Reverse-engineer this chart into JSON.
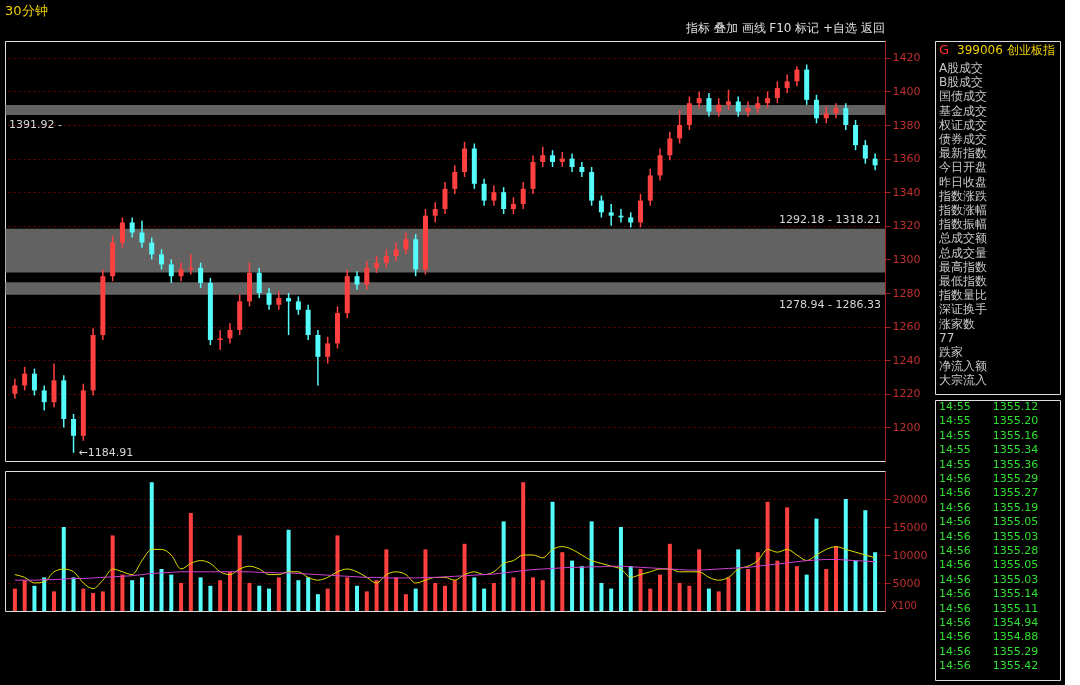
{
  "chart_data": [
    {
      "type": "candlestick",
      "title": "30分钟",
      "subtitle": "指标 叠加 画线 F10 标记 +自选 返回",
      "categories": [
        null,
        null,
        null,
        null,
        null,
        null,
        null,
        null,
        null,
        null,
        null,
        null,
        null,
        null,
        null,
        null,
        null,
        null,
        null,
        null,
        null,
        null,
        null,
        null,
        null,
        null,
        null,
        null,
        null,
        null,
        null,
        null,
        null,
        null,
        null,
        null,
        null,
        null,
        null,
        null,
        null,
        null,
        null,
        null,
        null,
        null,
        null,
        null,
        null,
        null,
        null,
        null,
        null,
        null,
        null,
        null,
        null,
        null,
        null,
        null,
        null,
        null,
        null,
        null,
        null,
        null,
        null,
        null,
        null,
        null,
        null,
        null,
        null,
        null,
        null,
        null,
        null,
        null,
        null,
        null,
        null,
        null,
        null,
        null,
        null,
        null,
        null,
        null,
        null
      ],
      "ohlc": [
        [
          1220,
          1229,
          1217,
          1225
        ],
        [
          1225,
          1236,
          1222,
          1232
        ],
        [
          1232,
          1235,
          1219,
          1222
        ],
        [
          1222,
          1225,
          1210,
          1215
        ],
        [
          1215,
          1238,
          1212,
          1228
        ],
        [
          1228,
          1231,
          1200,
          1205
        ],
        [
          1205,
          1208,
          1184.91,
          1195
        ],
        [
          1195,
          1226,
          1192,
          1222
        ],
        [
          1222,
          1259,
          1219,
          1255
        ],
        [
          1255,
          1294,
          1252,
          1290
        ],
        [
          1290,
          1314,
          1287,
          1310
        ],
        [
          1310,
          1325,
          1307,
          1322
        ],
        [
          1322,
          1325,
          1313,
          1316
        ],
        [
          1316,
          1323,
          1307,
          1310
        ],
        [
          1310,
          1313,
          1300,
          1303
        ],
        [
          1303,
          1306,
          1294,
          1297
        ],
        [
          1297,
          1300,
          1286,
          1290
        ],
        [
          1290,
          1298,
          1287,
          1294
        ],
        [
          1294,
          1303,
          1291,
          1295
        ],
        [
          1295,
          1298,
          1283,
          1286
        ],
        [
          1286,
          1289,
          1249,
          1252
        ],
        [
          1252,
          1258,
          1246,
          1253
        ],
        [
          1253,
          1262,
          1250,
          1258
        ],
        [
          1258,
          1279,
          1255,
          1275
        ],
        [
          1275,
          1298,
          1272,
          1292
        ],
        [
          1292,
          1295,
          1277,
          1280
        ],
        [
          1280,
          1283,
          1270,
          1273
        ],
        [
          1273,
          1281,
          1270,
          1277
        ],
        [
          1277,
          1280,
          1255,
          1275
        ],
        [
          1275,
          1278,
          1267,
          1270
        ],
        [
          1270,
          1273,
          1252,
          1255
        ],
        [
          1255,
          1258,
          1225,
          1242
        ],
        [
          1242,
          1254,
          1238,
          1250
        ],
        [
          1250,
          1272,
          1247,
          1268
        ],
        [
          1268,
          1294,
          1265,
          1290
        ],
        [
          1290,
          1293,
          1282,
          1285
        ],
        [
          1285,
          1299,
          1282,
          1295
        ],
        [
          1295,
          1302,
          1292,
          1298
        ],
        [
          1298,
          1306,
          1295,
          1302
        ],
        [
          1302,
          1310,
          1299,
          1306
        ],
        [
          1306,
          1316,
          1303,
          1312
        ],
        [
          1312,
          1315,
          1290,
          1294
        ],
        [
          1294,
          1330,
          1291,
          1326
        ],
        [
          1326,
          1334,
          1322,
          1330
        ],
        [
          1330,
          1346,
          1327,
          1342
        ],
        [
          1342,
          1356,
          1339,
          1352
        ],
        [
          1352,
          1370,
          1349,
          1366
        ],
        [
          1366,
          1369,
          1342,
          1345
        ],
        [
          1345,
          1348,
          1332,
          1335
        ],
        [
          1335,
          1344,
          1332,
          1340
        ],
        [
          1340,
          1343,
          1327,
          1330
        ],
        [
          1330,
          1337,
          1327,
          1333
        ],
        [
          1333,
          1346,
          1330,
          1342
        ],
        [
          1342,
          1362,
          1339,
          1358
        ],
        [
          1358,
          1367,
          1355,
          1362
        ],
        [
          1362,
          1365,
          1355,
          1358
        ],
        [
          1358,
          1364,
          1355,
          1360
        ],
        [
          1360,
          1363,
          1352,
          1355
        ],
        [
          1355,
          1358,
          1349,
          1352
        ],
        [
          1352,
          1355,
          1332,
          1335
        ],
        [
          1335,
          1338,
          1325,
          1328
        ],
        [
          1328,
          1333,
          1320,
          1326
        ],
        [
          1326,
          1330,
          1322,
          1325
        ],
        [
          1325,
          1328,
          1319,
          1322
        ],
        [
          1322,
          1339,
          1319,
          1335
        ],
        [
          1335,
          1354,
          1332,
          1350
        ],
        [
          1350,
          1366,
          1347,
          1362
        ],
        [
          1362,
          1376,
          1359,
          1372
        ],
        [
          1372,
          1389,
          1369,
          1380
        ],
        [
          1380,
          1397,
          1377,
          1393
        ],
        [
          1393,
          1400,
          1390,
          1396
        ],
        [
          1396,
          1399,
          1385,
          1388
        ],
        [
          1388,
          1396,
          1385,
          1392
        ],
        [
          1392,
          1401,
          1389,
          1394
        ],
        [
          1394,
          1397,
          1385,
          1388
        ],
        [
          1388,
          1394,
          1385,
          1390
        ],
        [
          1390,
          1397,
          1387,
          1393
        ],
        [
          1393,
          1400,
          1390,
          1396
        ],
        [
          1396,
          1406,
          1393,
          1402
        ],
        [
          1402,
          1410,
          1399,
          1406
        ],
        [
          1406,
          1415,
          1403,
          1413
        ],
        [
          1413,
          1416,
          1392,
          1395
        ],
        [
          1395,
          1398,
          1381,
          1384
        ],
        [
          1384,
          1391,
          1381,
          1387
        ],
        [
          1387,
          1393,
          1384,
          1390
        ],
        [
          1390,
          1393,
          1377,
          1380
        ],
        [
          1380,
          1383,
          1365,
          1368
        ],
        [
          1368,
          1371,
          1357,
          1360
        ],
        [
          1360,
          1363,
          1353,
          1356
        ]
      ],
      "colors": [
        "#ff4040",
        "#ff4040",
        "#54fcfc",
        "#54fcfc",
        "#ff4040",
        "#54fcfc",
        "#54fcfc",
        "#ff4040",
        "#ff4040",
        "#ff4040",
        "#ff4040",
        "#ff4040",
        "#54fcfc",
        "#54fcfc",
        "#54fcfc",
        "#54fcfc",
        "#54fcfc",
        "#ff4040",
        "#ff4040",
        "#54fcfc",
        "#54fcfc",
        "#ff4040",
        "#ff4040",
        "#ff4040",
        "#ff4040",
        "#54fcfc",
        "#54fcfc",
        "#ff4040",
        "#54fcfc",
        "#54fcfc",
        "#54fcfc",
        "#54fcfc",
        "#ff4040",
        "#ff4040",
        "#ff4040",
        "#54fcfc",
        "#ff4040",
        "#ff4040",
        "#ff4040",
        "#ff4040",
        "#ff4040",
        "#54fcfc",
        "#ff4040",
        "#ff4040",
        "#ff4040",
        "#ff4040",
        "#ff4040",
        "#54fcfc",
        "#54fcfc",
        "#ff4040",
        "#54fcfc",
        "#ff4040",
        "#ff4040",
        "#ff4040",
        "#ff4040",
        "#54fcfc",
        "#ff4040",
        "#54fcfc",
        "#54fcfc",
        "#54fcfc",
        "#54fcfc",
        "#54fcfc",
        "#54fcfc",
        "#54fcfc",
        "#ff4040",
        "#ff4040",
        "#ff4040",
        "#ff4040",
        "#ff4040",
        "#ff4040",
        "#ff4040",
        "#54fcfc",
        "#ff4040",
        "#ff4040",
        "#54fcfc",
        "#ff4040",
        "#ff4040",
        "#ff4040",
        "#ff4040",
        "#ff4040",
        "#ff4040",
        "#54fcfc",
        "#54fcfc",
        "#ff4040",
        "#ff4040",
        "#54fcfc",
        "#54fcfc",
        "#54fcfc",
        "#54fcfc"
      ],
      "ylim": [
        1180,
        1430
      ],
      "yticks": [
        1200,
        1220,
        1240,
        1260,
        1280,
        1300,
        1320,
        1340,
        1360,
        1380,
        1400,
        1420
      ],
      "grid": "y",
      "bands": [
        {
          "axis": "y",
          "from": 1292.18,
          "to": 1318.21,
          "label": "1292.18 - 1318.21",
          "color": "#8c8c8c"
        },
        {
          "axis": "y",
          "from": 1278.94,
          "to": 1286.33,
          "label": "1278.94 - 1286.33",
          "color": "#8c8c8c"
        },
        {
          "axis": "y",
          "from": 1386,
          "to": 1391.92,
          "label": "1391.92 -",
          "color": "#8c8c8c"
        }
      ],
      "annotations": [
        "←1184.91"
      ]
    },
    {
      "type": "bar",
      "categories": [
        null,
        null,
        null,
        null,
        null,
        null,
        null,
        null,
        null,
        null,
        null,
        null,
        null,
        null,
        null,
        null,
        null,
        null,
        null,
        null,
        null,
        null,
        null,
        null,
        null,
        null,
        null,
        null,
        null,
        null,
        null,
        null,
        null,
        null,
        null,
        null,
        null,
        null,
        null,
        null,
        null,
        null,
        null,
        null,
        null,
        null,
        null,
        null,
        null,
        null,
        null,
        null,
        null,
        null,
        null,
        null,
        null,
        null,
        null,
        null,
        null,
        null,
        null,
        null,
        null,
        null,
        null,
        null,
        null,
        null,
        null,
        null,
        null,
        null,
        null,
        null,
        null,
        null,
        null,
        null,
        null,
        null,
        null,
        null,
        null,
        null,
        null,
        null,
        null
      ],
      "series": [
        {
          "type": "bar",
          "colors": [
            "#ff4040",
            "#ff4040",
            "#54fcfc",
            "#54fcfc",
            "#ff4040",
            "#54fcfc",
            "#54fcfc",
            "#ff4040",
            "#ff4040",
            "#ff4040",
            "#ff4040",
            "#ff4040",
            "#54fcfc",
            "#54fcfc",
            "#54fcfc",
            "#54fcfc",
            "#54fcfc",
            "#ff4040",
            "#ff4040",
            "#54fcfc",
            "#54fcfc",
            "#ff4040",
            "#ff4040",
            "#ff4040",
            "#ff4040",
            "#54fcfc",
            "#54fcfc",
            "#ff4040",
            "#54fcfc",
            "#54fcfc",
            "#54fcfc",
            "#54fcfc",
            "#ff4040",
            "#ff4040",
            "#ff4040",
            "#54fcfc",
            "#ff4040",
            "#ff4040",
            "#ff4040",
            "#ff4040",
            "#ff4040",
            "#54fcfc",
            "#ff4040",
            "#ff4040",
            "#ff4040",
            "#ff4040",
            "#ff4040",
            "#54fcfc",
            "#54fcfc",
            "#ff4040",
            "#54fcfc",
            "#ff4040",
            "#ff4040",
            "#ff4040",
            "#ff4040",
            "#54fcfc",
            "#ff4040",
            "#54fcfc",
            "#54fcfc",
            "#54fcfc",
            "#54fcfc",
            "#54fcfc",
            "#54fcfc",
            "#54fcfc",
            "#ff4040",
            "#ff4040",
            "#ff4040",
            "#ff4040",
            "#ff4040",
            "#ff4040",
            "#ff4040",
            "#54fcfc",
            "#ff4040",
            "#ff4040",
            "#54fcfc",
            "#ff4040",
            "#ff4040",
            "#ff4040",
            "#ff4040",
            "#ff4040",
            "#ff4040",
            "#54fcfc",
            "#54fcfc",
            "#ff4040",
            "#ff4040",
            "#54fcfc",
            "#54fcfc",
            "#54fcfc",
            "#54fcfc"
          ],
          "values": [
            4000,
            5500,
            4500,
            6000,
            3500,
            15000,
            6000,
            4000,
            3200,
            3500,
            13500,
            6500,
            5500,
            6000,
            23000,
            7500,
            6500,
            5000,
            17500,
            6000,
            4500,
            5500,
            7000,
            13500,
            5000,
            4500,
            4000,
            6000,
            14500,
            5500,
            6000,
            3000,
            4000,
            13500,
            6000,
            4500,
            3500,
            5500,
            11000,
            6000,
            3000,
            4000,
            11000,
            5000,
            4500,
            5500,
            12000,
            6000,
            4000,
            5000,
            16000,
            6000,
            23000,
            6000,
            5500,
            19500,
            10500,
            9000,
            8000,
            16000,
            5000,
            4000,
            15000,
            8000,
            7500,
            4000,
            6500,
            12000,
            5000,
            4500,
            11000,
            4000,
            3500,
            6000,
            11000,
            7500,
            10500,
            19500,
            9000,
            18500,
            8000,
            6500,
            16500,
            7500,
            11500,
            20000,
            9000,
            18000,
            10500
          ]
        },
        {
          "type": "line",
          "color": "#e0e000",
          "values": [
            6500,
            6000,
            5000,
            5200,
            7000,
            7500,
            7000,
            5000,
            4000,
            5500,
            7500,
            7000,
            6500,
            9000,
            11000,
            11000,
            10000,
            7500,
            8500,
            9000,
            8500,
            7000,
            6500,
            7500,
            8000,
            7500,
            6500,
            6500,
            7000,
            7000,
            6000,
            5500,
            6000,
            7000,
            7500,
            7000,
            6000,
            5000,
            6500,
            7000,
            6500,
            5000,
            5500,
            6000,
            6000,
            5500,
            6500,
            7000,
            6500,
            7000,
            8500,
            9000,
            10000,
            10000,
            9500,
            11000,
            11500,
            11000,
            10000,
            9000,
            8500,
            8000,
            7500,
            6000,
            6500,
            7000,
            7500,
            7500,
            7000,
            7000,
            7000,
            6000,
            5500,
            6000,
            7500,
            8000,
            9000,
            11000,
            10500,
            11000,
            10000,
            9000,
            10000,
            11000,
            11500,
            11000,
            10500,
            10000,
            9500
          ]
        },
        {
          "type": "line",
          "color": "#d040d0",
          "values": [
            5500,
            5500,
            5500,
            5600,
            5600,
            5700,
            5800,
            5800,
            5900,
            6000,
            6100,
            6200,
            6300,
            6500,
            6700,
            6800,
            6900,
            7000,
            7000,
            7000,
            7000,
            7000,
            7000,
            7000,
            7000,
            6900,
            6900,
            6800,
            6800,
            6700,
            6600,
            6500,
            6400,
            6300,
            6200,
            6100,
            6000,
            6000,
            5900,
            5900,
            5900,
            5900,
            6000,
            6000,
            6100,
            6200,
            6300,
            6400,
            6500,
            6600,
            6800,
            7000,
            7200,
            7400,
            7500,
            7600,
            7700,
            7800,
            7800,
            7900,
            7900,
            8000,
            8000,
            7900,
            7800,
            7700,
            7600,
            7500,
            7400,
            7300,
            7300,
            7400,
            7500,
            7600,
            7700,
            7800,
            8000,
            8200,
            8400,
            8600,
            8800,
            9000,
            9100,
            9200,
            9200,
            9100,
            9000,
            8900,
            8800
          ]
        }
      ],
      "ylim": [
        0,
        25000
      ],
      "yticks": [
        5000,
        10000,
        15000,
        20000
      ],
      "grid": "y",
      "annotations": [
        "X100"
      ]
    },
    {
      "type": "other",
      "title": "399006 创业板指",
      "subtitle": "G",
      "annotations": [
        "A股成交",
        "B股成交",
        "国债成交",
        "基金成交",
        "权证成交",
        "债券成交",
        "最新指数",
        "今日开盘",
        "昨日收盘",
        "指数涨跌",
        "指数涨幅",
        "指数振幅",
        "总成交额",
        "总成交量",
        "最高指数",
        "最低指数",
        "指数量比",
        "深证换手",
        "涨家数",
        "77",
        "跌家",
        "净流入额",
        "大宗流入"
      ]
    },
    {
      "type": "other",
      "annotations": [
        "14:55 1355.12",
        "14:55 1355.20",
        "14:55 1355.16",
        "14:55 1355.34",
        "14:55 1355.36",
        "14:56 1355.29",
        "14:56 1355.27",
        "14:56 1355.19",
        "14:56 1355.05",
        "14:56 1355.03",
        "14:56 1355.28",
        "14:56 1355.05",
        "14:56 1355.03",
        "14:56 1355.14",
        "14:56 1355.11",
        "14:56 1354.94",
        "14:56 1354.88",
        "14:56 1355.29",
        "14:56 1355.42"
      ]
    }
  ]
}
